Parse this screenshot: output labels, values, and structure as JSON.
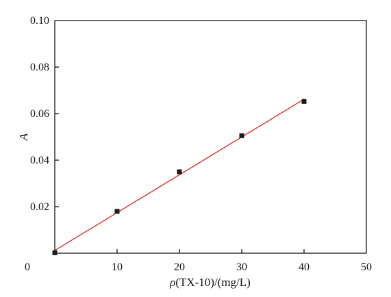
{
  "chart_data": {
    "type": "scatter",
    "xlabel_prefix": "ρ",
    "xlabel_suffix": "(TX-10)/(mg/L)",
    "ylabel": "A",
    "xlim": [
      0,
      50
    ],
    "ylim": [
      0,
      0.1
    ],
    "x_ticks": [
      0,
      10,
      20,
      30,
      40,
      50
    ],
    "x_tick_labels": [
      "0",
      "10",
      "20",
      "30",
      "40",
      "50"
    ],
    "y_ticks": [
      0.02,
      0.04,
      0.06,
      0.08,
      0.1
    ],
    "y_tick_labels": [
      "0.02",
      "0.04",
      "0.06",
      "0.08",
      "0.10"
    ],
    "series": [
      {
        "x": [
          0,
          10,
          20,
          30,
          40
        ],
        "y": [
          0.0002,
          0.018,
          0.035,
          0.0505,
          0.0652
        ]
      }
    ],
    "fit_line": {
      "x": [
        0,
        40
      ],
      "y": [
        0.0012,
        0.0662
      ]
    },
    "grid": false,
    "colors": {
      "marker": "#1a1a1a",
      "fit_line": "#e0301e",
      "axis": "#000000"
    }
  }
}
